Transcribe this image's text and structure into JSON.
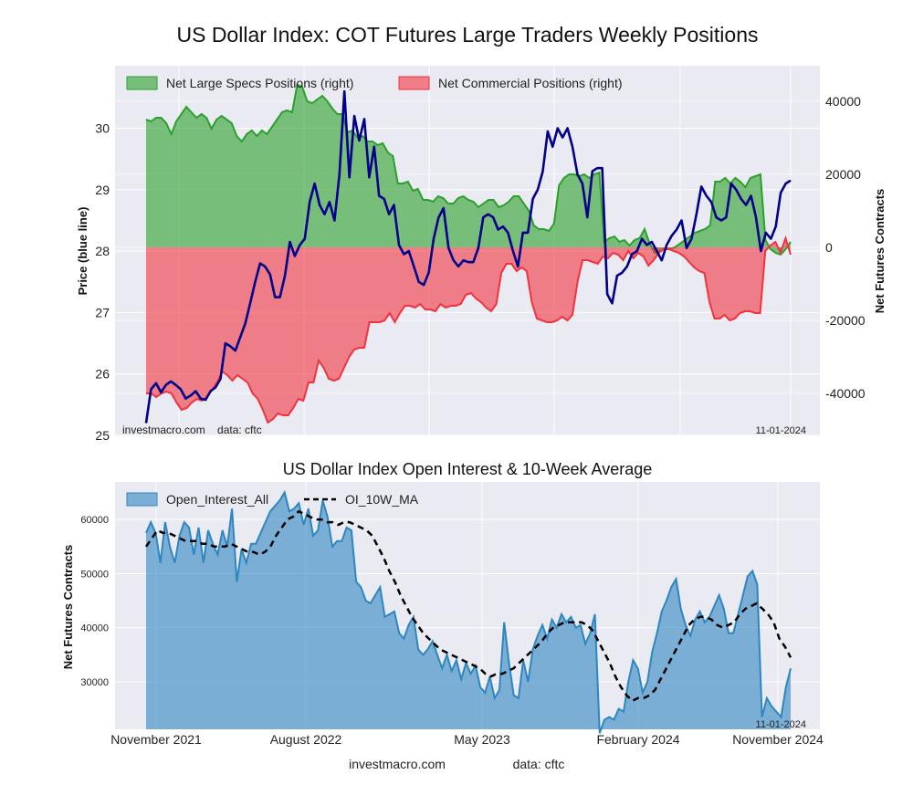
{
  "chart_data": [
    {
      "type": "line+area",
      "title": "US Dollar Index: COT Futures Large Traders Weekly Positions",
      "ylabel_left": "Price (blue line)",
      "ylabel_right": "Net Futures Contracts",
      "ylim_left": [
        25,
        30.9
      ],
      "ylim_right": [
        -50000,
        50000
      ],
      "left_ticks": [
        "25",
        "26",
        "27",
        "28",
        "29",
        "30"
      ],
      "right_ticks": [
        "-40000",
        "-20000",
        "0",
        "20000",
        "40000"
      ],
      "legend_position": "top-left",
      "series": [
        {
          "name": "Net Large Specs Positions (right)",
          "color": "#2ca02c",
          "kind": "area",
          "values": [
            35000,
            34500,
            35500,
            35500,
            34000,
            31000,
            34500,
            36500,
            38500,
            37000,
            35500,
            36500,
            35500,
            32500,
            35000,
            36000,
            35000,
            34000,
            30500,
            29000,
            31000,
            32000,
            30500,
            32000,
            31000,
            33000,
            35000,
            37000,
            37500,
            37000,
            44500,
            44000,
            40000,
            39500,
            40500,
            41500,
            40000,
            38000,
            36500,
            36500,
            31500,
            32000,
            30000,
            30500,
            29000,
            29000,
            28000,
            28500,
            26000,
            25000,
            17500,
            17500,
            18000,
            15500,
            16000,
            13000,
            13000,
            12500,
            14000,
            13500,
            12000,
            12000,
            13500,
            14000,
            13000,
            12500,
            11000,
            12000,
            13000,
            13000,
            11000,
            11500,
            12500,
            14000,
            14000,
            12000,
            10000,
            6000,
            5000,
            5000,
            4500,
            6500,
            17000,
            19000,
            20000,
            20000,
            19500,
            20000,
            19000,
            20000,
            20500,
            1500,
            2500,
            3000,
            1500,
            2000,
            500,
            2000,
            2500,
            5000,
            1000,
            -1500,
            -1000,
            -500,
            -500,
            0,
            1000,
            2000,
            3000,
            4000,
            4500,
            5000,
            6000,
            18000,
            18000,
            19000,
            17500,
            19000,
            18000,
            16500,
            19000,
            19500,
            20000,
            2000,
            -500,
            -1500,
            -2000,
            -500,
            1500
          ],
          "note": "weekly values Nov 2021 - Oct 2024"
        },
        {
          "name": "Net Commercial Positions (right)",
          "color": "#f0333f",
          "kind": "area",
          "values": [
            -40000,
            -40000,
            -41000,
            -40000,
            -39500,
            -40000,
            -42500,
            -44500,
            -44000,
            -42500,
            -41500,
            -42000,
            -41000,
            -39000,
            -37000,
            -34000,
            -35000,
            -36500,
            -35000,
            -36000,
            -37000,
            -40000,
            -41500,
            -44500,
            -48000,
            -47000,
            -45500,
            -46000,
            -46000,
            -44000,
            -41500,
            -42000,
            -37000,
            -37000,
            -31000,
            -33000,
            -36000,
            -36500,
            -36000,
            -33000,
            -30000,
            -28000,
            -27500,
            -27500,
            -20500,
            -20500,
            -20500,
            -20000,
            -18000,
            -20500,
            -18000,
            -16000,
            -16000,
            -16500,
            -15500,
            -17000,
            -17000,
            -17500,
            -15500,
            -16500,
            -16000,
            -16000,
            -15500,
            -13000,
            -12500,
            -14000,
            -15000,
            -16500,
            -17500,
            -15500,
            -7000,
            -4500,
            -4500,
            -6500,
            -5500,
            -6500,
            -15000,
            -19500,
            -20000,
            -20500,
            -20500,
            -20000,
            -19000,
            -20000,
            -18500,
            -9500,
            -3500,
            -3500,
            -4000,
            -4500,
            -2500,
            -3000,
            -1500,
            -2000,
            -3500,
            -1000,
            -3000,
            -1500,
            -2500,
            -5000,
            -3500,
            -1500,
            -500,
            -500,
            -1000,
            -1500,
            -2500,
            -4000,
            -5500,
            -6500,
            -7000,
            -15000,
            -19500,
            -19500,
            -18500,
            -20000,
            -19500,
            -18000,
            -17500,
            -17500,
            -18000,
            -18000,
            -1000,
            500,
            1500,
            -1500,
            2500,
            -2000
          ],
          "note": "weekly values Nov 2021 - Oct 2024"
        },
        {
          "name": "Price",
          "color": "#00008b",
          "kind": "line",
          "values": [
            25.2,
            25.75,
            25.85,
            25.7,
            25.82,
            25.88,
            25.82,
            25.75,
            25.6,
            25.65,
            25.72,
            25.6,
            25.58,
            25.72,
            25.78,
            25.92,
            26.5,
            26.45,
            26.38,
            26.6,
            26.82,
            27.15,
            27.5,
            27.8,
            27.75,
            27.62,
            27.25,
            27.25,
            27.6,
            28.15,
            27.92,
            28.1,
            28.2,
            28.8,
            29.1,
            28.75,
            28.6,
            28.8,
            28.5,
            29.25,
            30.6,
            29.2,
            30.2,
            29.8,
            30.15,
            29.2,
            29.7,
            28.9,
            28.85,
            28.6,
            28.75,
            28.1,
            27.95,
            28.0,
            27.75,
            27.5,
            27.45,
            27.65,
            28.2,
            28.55,
            28.7,
            28.05,
            27.85,
            27.75,
            27.85,
            27.82,
            27.82,
            28.05,
            28.55,
            28.6,
            28.55,
            28.35,
            28.4,
            28.3,
            28.0,
            27.75,
            28.3,
            28.3,
            28.85,
            29.0,
            29.3,
            29.95,
            29.7,
            30.0,
            29.85,
            30.0,
            29.7,
            29.25,
            29.1,
            28.55,
            29.3,
            29.35,
            29.35,
            27.3,
            27.15,
            27.6,
            27.65,
            27.75,
            27.95,
            28.0,
            28.2,
            28.1,
            28.15,
            28.0,
            27.85,
            28.1,
            28.25,
            28.35,
            28.5,
            28.05,
            28.2,
            28.6,
            29.05,
            28.9,
            28.8,
            28.55,
            28.5,
            28.55,
            29.1,
            29.0,
            28.85,
            28.75,
            28.9,
            28.55,
            28.0,
            28.3,
            28.2,
            28.4,
            28.95,
            29.1,
            29.15
          ]
        }
      ],
      "watermark_left": "investmacro.com    data: cftc",
      "date_label": "11-01-2024"
    },
    {
      "type": "area+line",
      "title": "US Dollar Index Open Interest & 10-Week Average",
      "ylabel": "Net Futures Contracts",
      "ylim": [
        21000,
        67000
      ],
      "yticks": [
        "30000",
        "40000",
        "50000",
        "60000"
      ],
      "xticks": [
        "November 2021",
        "August 2022",
        "May 2023",
        "February 2024",
        "November 2024"
      ],
      "legend_position": "top-left",
      "series": [
        {
          "name": "Open_Interest_All",
          "color": "#2e86c1",
          "kind": "area",
          "values": [
            57500,
            59500,
            57500,
            52000,
            59500,
            55000,
            52000,
            57000,
            59500,
            58500,
            53500,
            58500,
            52000,
            58000,
            55500,
            53500,
            58000,
            55000,
            62000,
            48500,
            54500,
            52000,
            55500,
            55500,
            57500,
            59500,
            61500,
            62500,
            63500,
            65000,
            61500,
            62000,
            63000,
            59000,
            62000,
            57000,
            58000,
            63500,
            60500,
            55000,
            56000,
            56000,
            58500,
            58000,
            48500,
            47500,
            45000,
            44500,
            46000,
            47500,
            42000,
            42500,
            43000,
            39000,
            38000,
            40500,
            42000,
            36000,
            35000,
            36000,
            37500,
            35000,
            32500,
            35000,
            32000,
            34000,
            30500,
            33500,
            31500,
            33000,
            29000,
            28000,
            31000,
            27000,
            28500,
            41000,
            33500,
            27500,
            27000,
            34000,
            30000,
            36000,
            38500,
            40500,
            38000,
            41500,
            40000,
            42500,
            41000,
            42000,
            40000,
            40500,
            37000,
            39000,
            42500,
            20500,
            23000,
            23500,
            23000,
            25000,
            24500,
            30000,
            34000,
            32500,
            28000,
            30000,
            35500,
            39000,
            43000,
            45000,
            47500,
            49000,
            43500,
            40500,
            38500,
            41500,
            43000,
            41000,
            42000,
            44000,
            46000,
            43500,
            39000,
            39000,
            42500,
            46000,
            49500,
            50500,
            48000,
            23500,
            27000,
            25500,
            24500,
            23500,
            29000,
            32500
          ],
          "note": "weekly values Nov 2021 - Oct 2024"
        },
        {
          "name": "OI_10W_MA",
          "color": "#000000",
          "kind": "dashed-line",
          "values": [
            55000,
            56500,
            58000,
            57500,
            57500,
            57000,
            56500,
            56000,
            56000,
            56000,
            55500,
            55500,
            55000,
            55000,
            55000,
            55500,
            55000,
            54500,
            54000,
            54000,
            53500,
            54000,
            55000,
            57000,
            58500,
            60000,
            60500,
            61500,
            61000,
            60500,
            60000,
            60000,
            59500,
            59500,
            59000,
            59500,
            59500,
            59000,
            58500,
            58000,
            57000,
            55000,
            53000,
            50500,
            48500,
            46000,
            44000,
            42000,
            40500,
            39000,
            38000,
            37000,
            36000,
            35500,
            35000,
            34500,
            34000,
            33500,
            33000,
            32500,
            31500,
            31000,
            31500,
            31500,
            32000,
            32500,
            33500,
            34500,
            35500,
            36500,
            37500,
            39000,
            40000,
            40500,
            41000,
            41000,
            41000,
            41000,
            40500,
            39500,
            37500,
            35500,
            33500,
            31000,
            29000,
            27500,
            26500,
            27000,
            27000,
            27500,
            28500,
            30500,
            32500,
            34500,
            36500,
            38500,
            40500,
            41500,
            42000,
            42000,
            41500,
            40500,
            40000,
            40500,
            41000,
            42500,
            43500,
            44000,
            44500,
            43500,
            42500,
            41000,
            38000,
            36500,
            34500
          ]
        }
      ],
      "date_label": "11-01-2024",
      "watermark_left": "investmacro.com",
      "watermark_right": "data: cftc"
    }
  ]
}
